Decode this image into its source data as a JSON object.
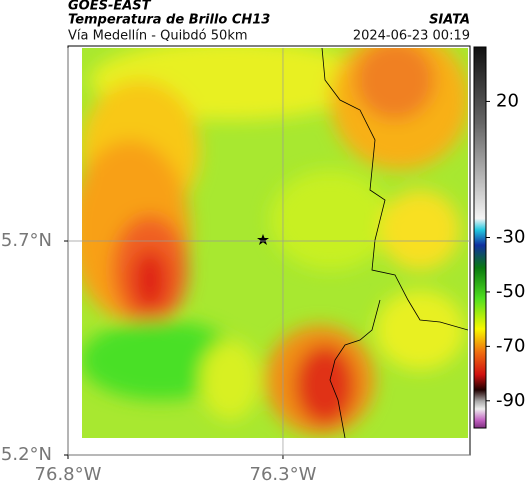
{
  "header": {
    "title": "GOES-EAST",
    "subtitle": "Temperatura de Brillo CH13",
    "location": "Vía Medellín - Quibdó 50km",
    "source": "SIATA",
    "timestamp": "2024-06-23 00:19"
  },
  "map": {
    "xlim": [
      -76.8,
      -75.865
    ],
    "ylim": [
      5.2,
      6.151
    ],
    "xticks": [
      {
        "value": -76.8,
        "label": "76.8°W"
      },
      {
        "value": -76.3,
        "label": "76.3°W"
      }
    ],
    "yticks": [
      {
        "value": 5.7,
        "label": "5.7°N"
      },
      {
        "value": 5.2,
        "label": "5.2°N"
      }
    ],
    "grid": true
  },
  "colorbar": {
    "ylim": [
      -100,
      40
    ],
    "yticks": [
      20,
      -30,
      -50,
      -70,
      -90
    ]
  }
}
